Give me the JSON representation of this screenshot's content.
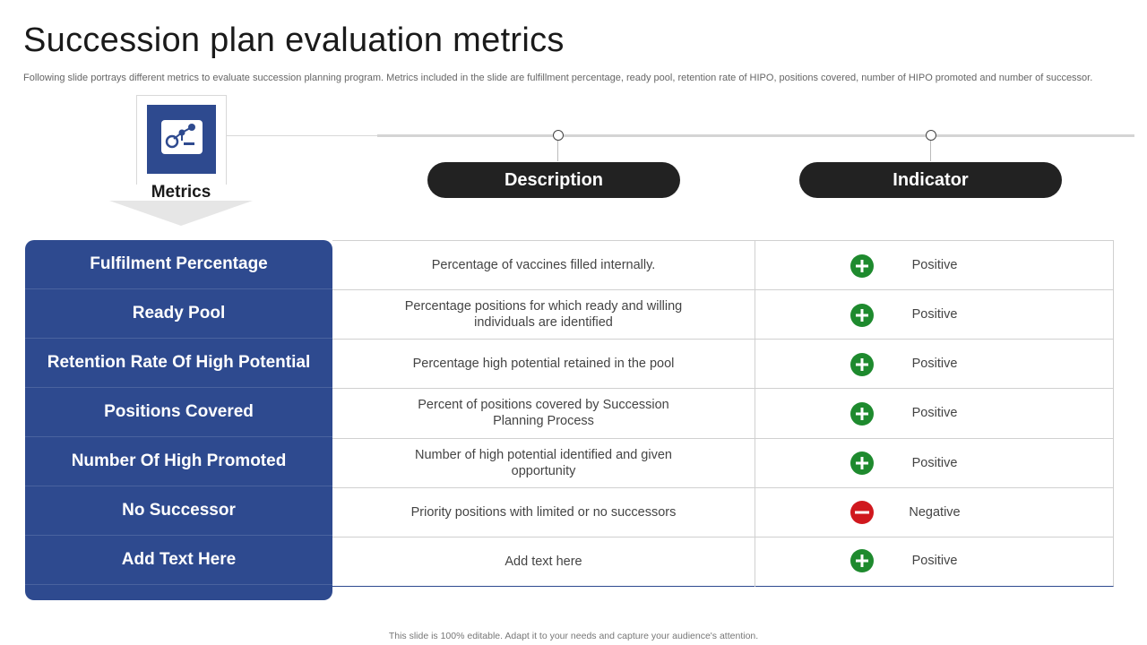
{
  "page": {
    "title": "Succession plan evaluation metrics",
    "subtitle": "Following slide portrays different metrics to evaluate succession planning program. Metrics included in the slide are fulfillment percentage, ready pool, retention rate of HIPO, positions covered, number of HIPO promoted and number of successor.",
    "footer": "This slide is 100% editable. Adapt it to your needs and capture your audience's attention."
  },
  "header": {
    "metrics_label": "Metrics",
    "metrics_icon": "analytics-icon",
    "description_label": "Description",
    "indicator_label": "Indicator"
  },
  "colors": {
    "primary_blue": "#2e4a8f",
    "pill_dark": "#222222",
    "positive_green": "#1e8a2e",
    "negative_red": "#d0181e"
  },
  "rows": [
    {
      "metric": "Fulfilment Percentage",
      "description": "Percentage of vaccines filled internally.",
      "indicator": "Positive",
      "status": "positive"
    },
    {
      "metric": "Ready Pool",
      "description": "Percentage positions for which ready and willing individuals are identified",
      "indicator": "Positive",
      "status": "positive"
    },
    {
      "metric": "Retention Rate Of High Potential",
      "description": "Percentage high potential retained in the pool",
      "indicator": "Positive",
      "status": "positive"
    },
    {
      "metric": "Positions Covered",
      "description": "Percent of positions covered by Succession Planning Process",
      "indicator": "Positive",
      "status": "positive"
    },
    {
      "metric": "Number Of High Promoted",
      "description": "Number of high potential identified and given opportunity",
      "indicator": "Positive",
      "status": "positive"
    },
    {
      "metric": "No Successor",
      "description": "Priority positions with limited or no successors",
      "indicator": "Negative",
      "status": "negative"
    },
    {
      "metric": "Add Text Here",
      "description": "Add text here",
      "indicator": "Positive",
      "status": "positive"
    }
  ]
}
